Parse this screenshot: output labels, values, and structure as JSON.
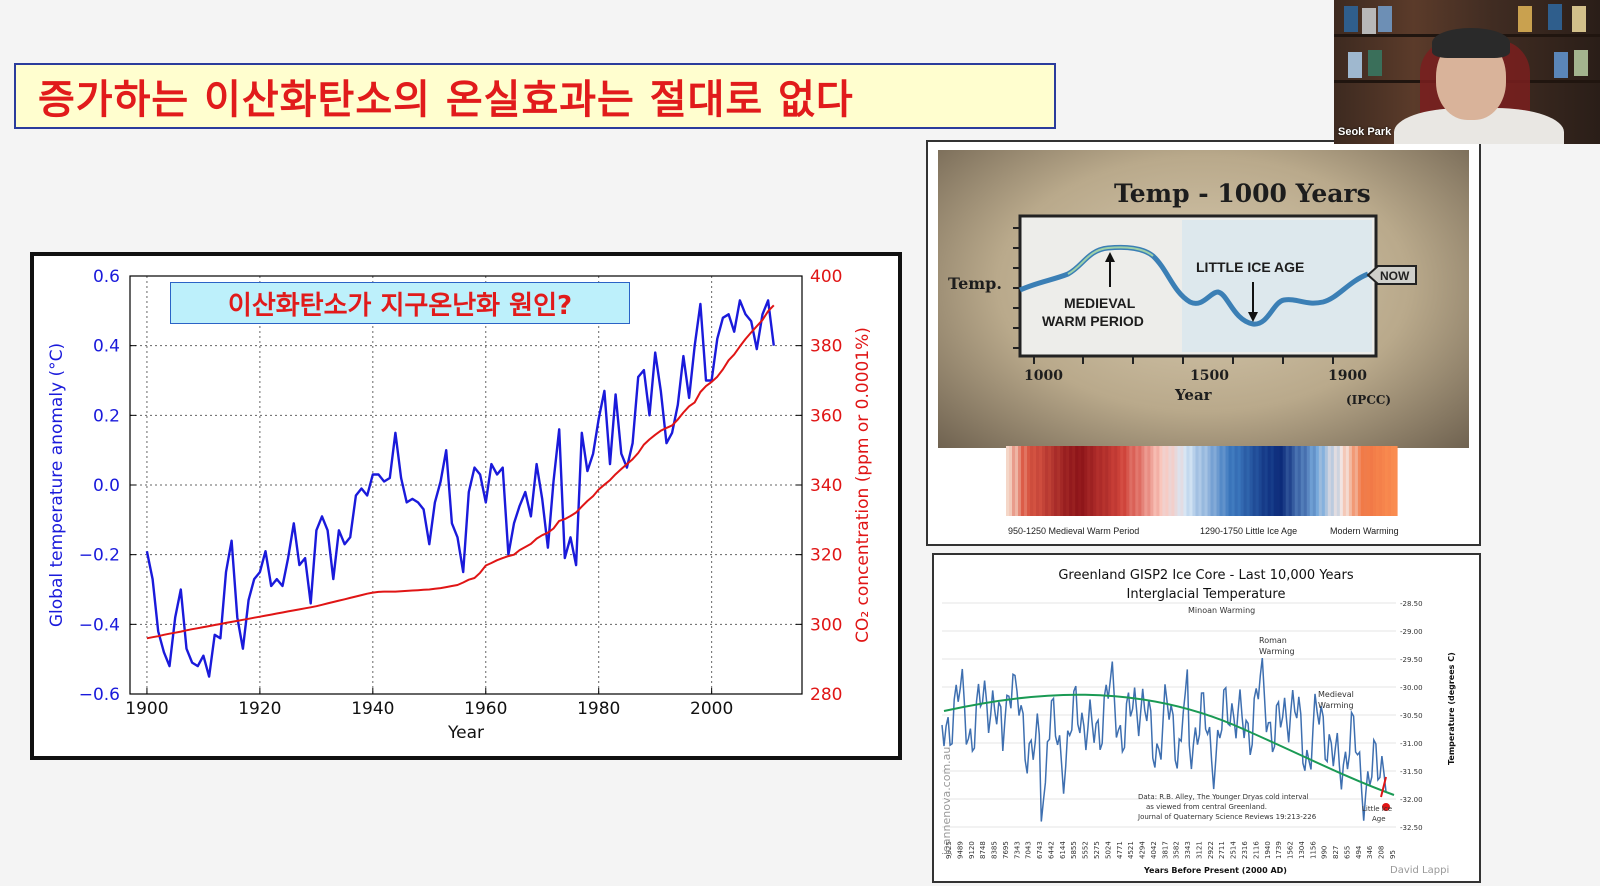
{
  "slide": {
    "title": "증가하는 이산화탄소의 온실효과는 절대로 없다"
  },
  "webcam": {
    "participant_name": "Seok Park"
  },
  "co2_chart": {
    "callout": "이산화탄소가 지구온난화 원인?",
    "xlabel": "Year",
    "ylabel_left": "Global temperature anomaly (°C)",
    "ylabel_right": "CO₂ concentration (ppm or 0.0001%)"
  },
  "panel_1000": {
    "title": "Temp - 1000 Years",
    "ylabel": "Temp.",
    "xlabel": "Year",
    "x_ticks": [
      "1000",
      "1500",
      "1900"
    ],
    "annotation_warm": [
      "MEDIEVAL",
      "WARM PERIOD"
    ],
    "annotation_ice": "LITTLE ICE AGE",
    "now_label": "NOW",
    "source": "(IPCC)",
    "stripe_labels": [
      "950-1250 Medieval Warm Period",
      "1290-1750 Little Ice Age",
      "Modern Warming"
    ]
  },
  "panel_greenland": {
    "title_line1": "Greenland GISP2 Ice Core - Last 10,000 Years",
    "title_line2": "Interglacial Temperature",
    "ylabel": "Temperature (degrees C)",
    "xlabel": "Years Before Present (2000 AD)",
    "y_ticks": [
      "-28.50",
      "-29.00",
      "-29.50",
      "-30.00",
      "-30.50",
      "-31.00",
      "-31.50",
      "-32.00",
      "-32.50"
    ],
    "x_ticks": [
      "9925",
      "9489",
      "9120",
      "8748",
      "8385",
      "7695",
      "7343",
      "7043",
      "6743",
      "6442",
      "6144",
      "5855",
      "5552",
      "5275",
      "5024",
      "4771",
      "4521",
      "4294",
      "4042",
      "3817",
      "3582",
      "3343",
      "3121",
      "2922",
      "2711",
      "2514",
      "2316",
      "2116",
      "1940",
      "1739",
      "1562",
      "1304",
      "1156",
      "990",
      "827",
      "655",
      "494",
      "346",
      "208",
      "95"
    ],
    "annotations": [
      "Minoan Warming",
      "Roman",
      "Warming",
      "Medieval",
      "Warming",
      "Little Ice",
      "Age"
    ],
    "data_note": [
      "Data: R.B. Alley,  The Younger Dryas cold interval",
      "as viewed from central Greenland.",
      "Journal of Quaternary  Science Reviews 19:213-226"
    ],
    "watermark": "joannenova.com.au",
    "author": "David Lappi"
  },
  "chart_data": [
    {
      "type": "line",
      "x": [
        1900,
        1901,
        1902,
        1903,
        1904,
        1905,
        1906,
        1907,
        1908,
        1909,
        1910,
        1911,
        1912,
        1913,
        1914,
        1915,
        1916,
        1917,
        1918,
        1919,
        1920,
        1921,
        1922,
        1923,
        1924,
        1925,
        1926,
        1927,
        1928,
        1929,
        1930,
        1931,
        1932,
        1933,
        1934,
        1935,
        1936,
        1937,
        1938,
        1939,
        1940,
        1941,
        1942,
        1943,
        1944,
        1945,
        1946,
        1947,
        1948,
        1949,
        1950,
        1951,
        1952,
        1953,
        1954,
        1955,
        1956,
        1957,
        1958,
        1959,
        1960,
        1961,
        1962,
        1963,
        1964,
        1965,
        1966,
        1967,
        1968,
        1969,
        1970,
        1971,
        1972,
        1973,
        1974,
        1975,
        1976,
        1977,
        1978,
        1979,
        1980,
        1981,
        1982,
        1983,
        1984,
        1985,
        1986,
        1987,
        1988,
        1989,
        1990,
        1991,
        1992,
        1993,
        1994,
        1995,
        1996,
        1997,
        1998,
        1999,
        2000,
        2001,
        2002,
        2003,
        2004,
        2005,
        2006,
        2007,
        2008,
        2009,
        2010,
        2011
      ],
      "series": [
        {
          "values": [
            -0.19,
            -0.27,
            -0.42,
            -0.48,
            -0.52,
            -0.38,
            -0.3,
            -0.47,
            -0.51,
            -0.52,
            -0.49,
            -0.55,
            -0.43,
            -0.44,
            -0.25,
            -0.16,
            -0.38,
            -0.47,
            -0.33,
            -0.27,
            -0.25,
            -0.19,
            -0.29,
            -0.27,
            -0.29,
            -0.21,
            -0.11,
            -0.23,
            -0.21,
            -0.34,
            -0.13,
            -0.09,
            -0.13,
            -0.27,
            -0.13,
            -0.17,
            -0.15,
            -0.03,
            -0.01,
            -0.03,
            0.03,
            0.03,
            0.01,
            0.02,
            0.15,
            0.02,
            -0.05,
            -0.04,
            -0.05,
            -0.07,
            -0.17,
            -0.05,
            0.01,
            0.1,
            -0.11,
            -0.15,
            -0.25,
            -0.02,
            0.05,
            0.03,
            -0.05,
            0.06,
            0.03,
            0.05,
            -0.2,
            -0.11,
            -0.06,
            -0.02,
            -0.09,
            0.06,
            -0.04,
            -0.18,
            0.01,
            0.16,
            -0.21,
            -0.15,
            -0.23,
            0.15,
            0.04,
            0.09,
            0.19,
            0.27,
            0.06,
            0.26,
            0.09,
            0.05,
            0.12,
            0.31,
            0.33,
            0.2,
            0.38,
            0.27,
            0.12,
            0.15,
            0.23,
            0.37,
            0.25,
            0.4,
            0.52,
            0.3,
            0.3,
            0.42,
            0.48,
            0.49,
            0.44,
            0.53,
            0.49,
            0.47,
            0.39,
            0.49,
            0.53,
            0.4
          ]
        },
        {
          "values": [
            296,
            296.3,
            296.6,
            297,
            297.3,
            297.6,
            297.9,
            298.3,
            298.6,
            298.9,
            299.2,
            299.5,
            299.8,
            300.1,
            300.4,
            300.7,
            301,
            301.3,
            301.6,
            301.9,
            302.2,
            302.5,
            302.8,
            303.1,
            303.4,
            303.7,
            304,
            304.3,
            304.6,
            304.9,
            305.2,
            305.6,
            306,
            306.4,
            306.8,
            307.2,
            307.6,
            308,
            308.4,
            308.8,
            309.1,
            309.3,
            309.4,
            309.4,
            309.4,
            309.5,
            309.6,
            309.7,
            309.8,
            309.9,
            310,
            310.2,
            310.4,
            310.7,
            311,
            311.3,
            312,
            312.8,
            313.3,
            314.8,
            316.9,
            317.6,
            318.4,
            319,
            319.6,
            320,
            321.3,
            322.2,
            323.1,
            324.6,
            325.6,
            326.3,
            327.5,
            329.7,
            330.2,
            331.1,
            332.1,
            333.8,
            335.4,
            336.8,
            338.7,
            340.1,
            341.4,
            343.1,
            344.6,
            346,
            347.4,
            349.2,
            351.6,
            353.1,
            354.4,
            355.6,
            356.4,
            357.1,
            358.8,
            360.8,
            362.6,
            363.7,
            366.7,
            368.4,
            369.6,
            371.1,
            373.2,
            375.8,
            377.5,
            379.8,
            381.9,
            383.8,
            385.6,
            387.4,
            389.9,
            391.6
          ]
        }
      ],
      "xlabel": "Year",
      "ylabel": "Global temperature anomaly (°C)",
      "y2label": "CO₂ concentration (ppm or 0.0001%)",
      "xlim": [
        1897,
        2016
      ],
      "ylim": [
        -0.6,
        0.6
      ],
      "y2lim": [
        280,
        400
      ],
      "x_ticks": [
        1900,
        1920,
        1940,
        1960,
        1980,
        2000
      ],
      "y_ticks": [
        -0.6,
        -0.4,
        -0.2,
        0.0,
        0.2,
        0.4,
        0.6
      ],
      "y2_ticks": [
        280,
        300,
        320,
        340,
        360,
        380,
        400
      ],
      "y_tick_labels": [
        "−0.6",
        "−0.4",
        "−0.2",
        "0.0",
        "0.2",
        "0.4",
        "0.6"
      ],
      "grid": true,
      "colors": {
        "temperature": "#1a1adb",
        "co2": "#e01515"
      }
    }
  ]
}
